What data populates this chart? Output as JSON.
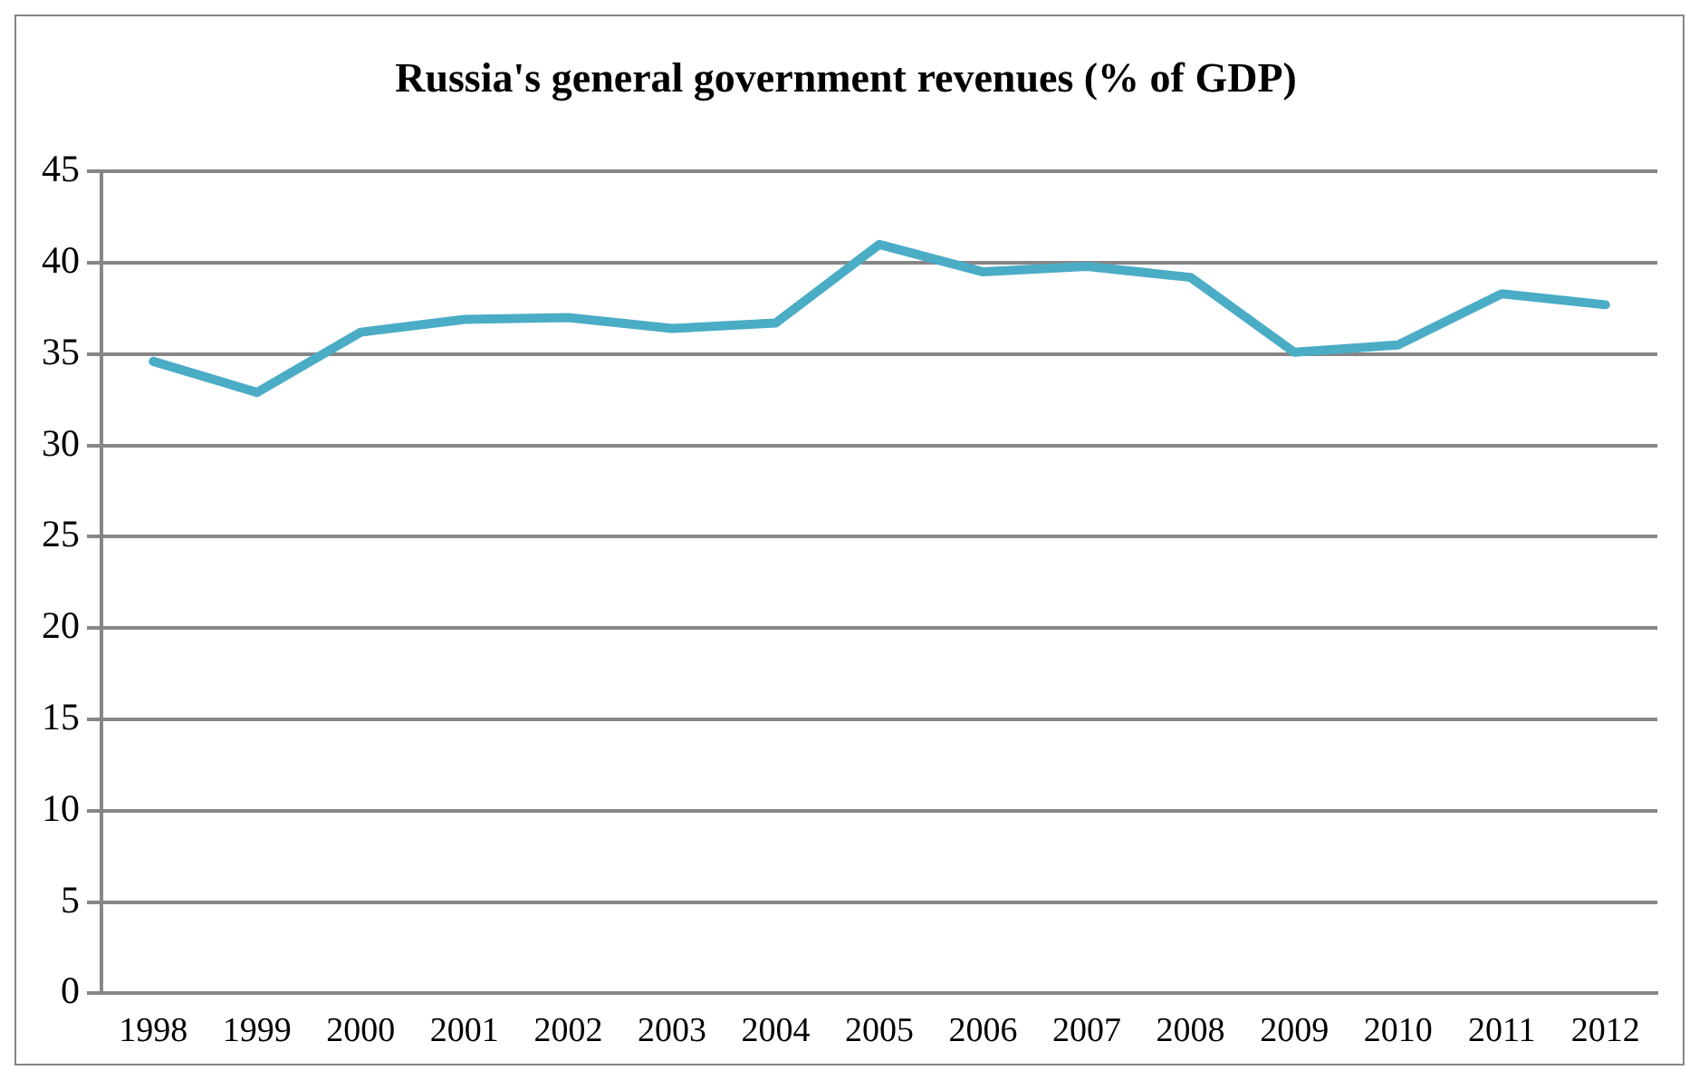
{
  "chart_data": {
    "type": "line",
    "title": "Russia's general government revenues (% of GDP)",
    "categories": [
      "1998",
      "1999",
      "2000",
      "2001",
      "2002",
      "2003",
      "2004",
      "2005",
      "2006",
      "2007",
      "2008",
      "2009",
      "2010",
      "2011",
      "2012"
    ],
    "series": [
      {
        "color": "#4bacc6",
        "values": [
          34.6,
          32.9,
          36.2,
          36.9,
          37.0,
          36.4,
          36.7,
          41.0,
          39.5,
          39.8,
          39.2,
          35.1,
          35.5,
          38.3,
          37.7
        ]
      }
    ],
    "ylim": [
      0,
      45
    ],
    "yticks": [
      0,
      5,
      10,
      15,
      20,
      25,
      30,
      35,
      40,
      45
    ],
    "grid": "y",
    "legend": false,
    "marker": "none",
    "line_style": "solid"
  }
}
